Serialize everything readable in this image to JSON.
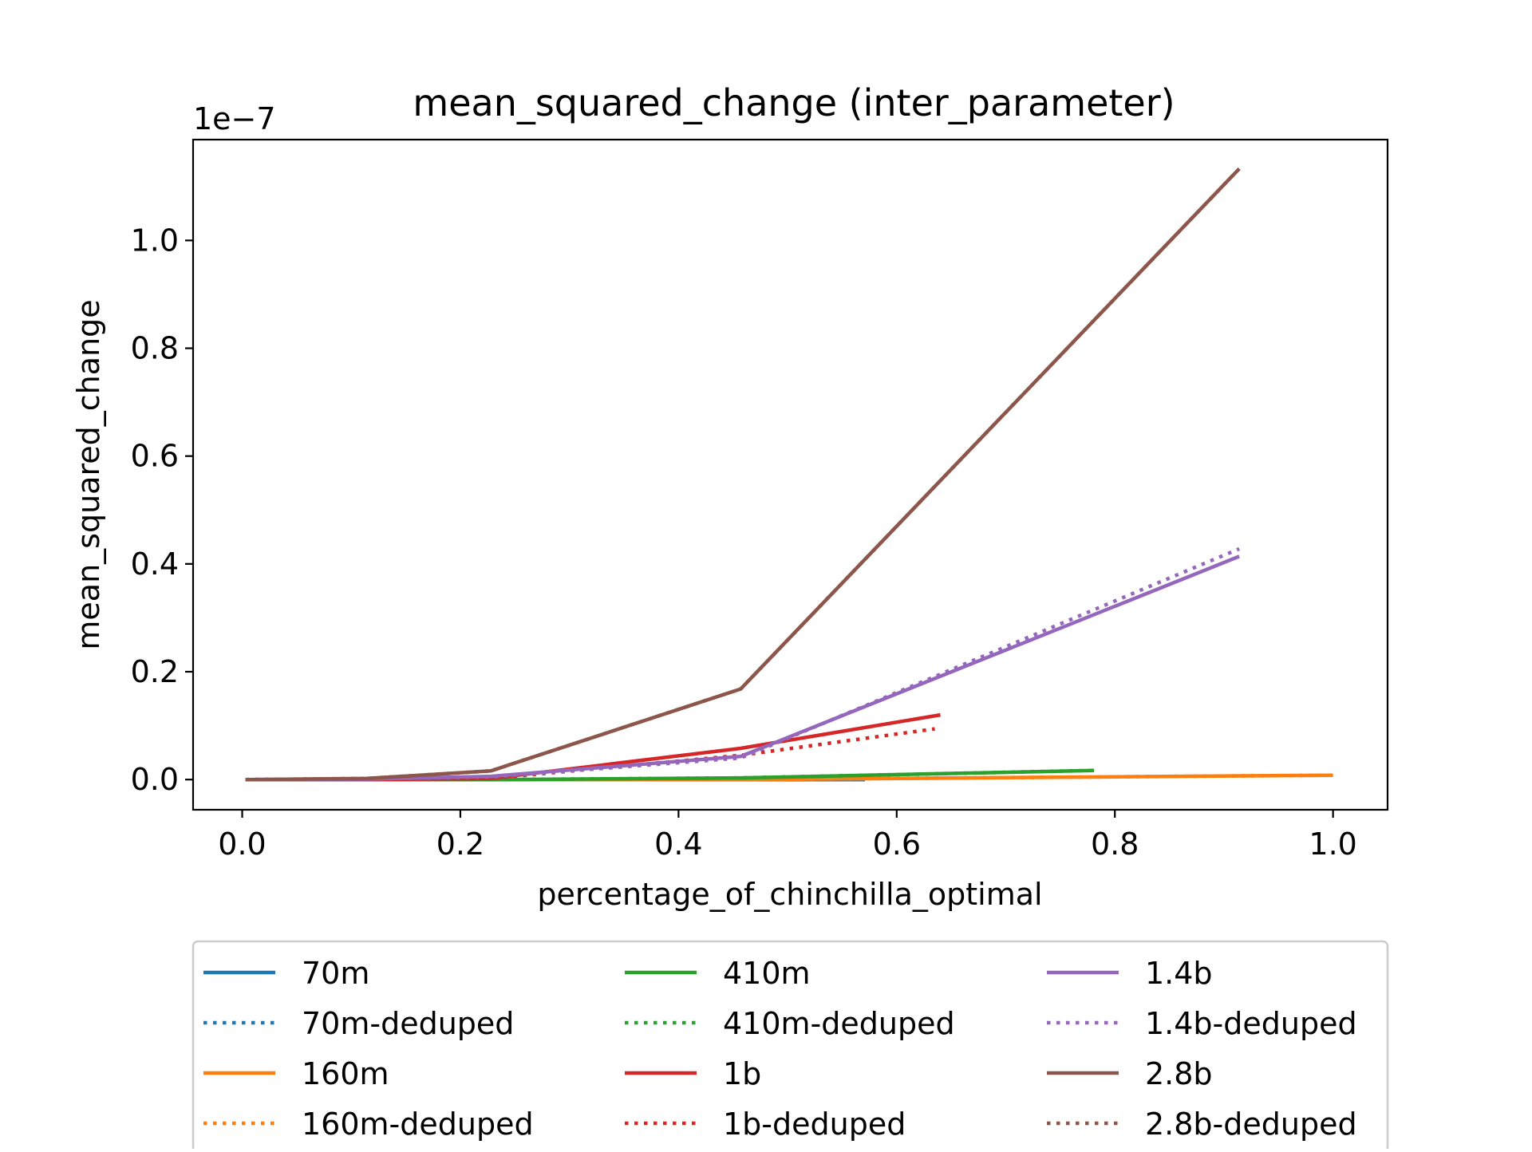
{
  "chart_data": {
    "type": "line",
    "title": "mean_squared_change (inter_parameter)",
    "xlabel": "percentage_of_chinchilla_optimal",
    "ylabel": "mean_squared_change",
    "y_offset_label": "1e−7",
    "xlim": [
      -0.045,
      1.05
    ],
    "ylim": [
      -0.056,
      1.187
    ],
    "y_scale": "1e-7",
    "xticks": [
      0.0,
      0.2,
      0.4,
      0.6,
      0.8,
      1.0
    ],
    "xtick_labels": [
      "0.0",
      "0.2",
      "0.4",
      "0.6",
      "0.8",
      "1.0"
    ],
    "yticks": [
      0.0,
      0.2,
      0.4,
      0.6,
      0.8,
      1.0
    ],
    "ytick_labels": [
      "0.0",
      "0.2",
      "0.4",
      "0.6",
      "0.8",
      "1.0"
    ],
    "grid": false,
    "legend_position": "below",
    "legend_columns": 3,
    "series": [
      {
        "name": "70m",
        "color": "#1f77b4",
        "style": "solid",
        "x": [
          0.003,
          0.114,
          0.228,
          0.457,
          0.571
        ],
        "y": [
          0.0,
          0.0,
          0.0,
          0.0,
          0.0
        ]
      },
      {
        "name": "70m-deduped",
        "color": "#1f77b4",
        "style": "dotted",
        "x": [
          0.003,
          0.114,
          0.228,
          0.457,
          0.571
        ],
        "y": [
          0.0,
          0.0,
          0.0,
          0.0,
          0.0
        ]
      },
      {
        "name": "160m",
        "color": "#ff7f0e",
        "style": "solid",
        "x": [
          0.003,
          0.114,
          0.228,
          0.457,
          1.0
        ],
        "y": [
          0.0,
          0.0,
          0.0,
          0.0,
          0.008
        ]
      },
      {
        "name": "160m-deduped",
        "color": "#ff7f0e",
        "style": "dotted",
        "x": [
          0.003,
          0.114,
          0.228,
          0.457,
          1.0
        ],
        "y": [
          0.0,
          0.0,
          0.0,
          0.0,
          0.008
        ]
      },
      {
        "name": "410m",
        "color": "#2ca02c",
        "style": "solid",
        "x": [
          0.003,
          0.114,
          0.228,
          0.457,
          0.781
        ],
        "y": [
          0.0,
          0.0,
          0.0,
          0.003,
          0.017
        ]
      },
      {
        "name": "410m-deduped",
        "color": "#2ca02c",
        "style": "dotted",
        "x": [
          0.003,
          0.114,
          0.228,
          0.457,
          0.781
        ],
        "y": [
          0.0,
          0.0,
          0.0,
          0.003,
          0.017
        ]
      },
      {
        "name": "1b",
        "color": "#d62728",
        "style": "solid",
        "x": [
          0.003,
          0.114,
          0.228,
          0.457,
          0.64
        ],
        "y": [
          0.0,
          0.0,
          0.002,
          0.058,
          0.12
        ]
      },
      {
        "name": "1b-deduped",
        "color": "#d62728",
        "style": "dotted",
        "x": [
          0.003,
          0.114,
          0.228,
          0.457,
          0.635
        ],
        "y": [
          0.0,
          0.0,
          0.002,
          0.045,
          0.094
        ]
      },
      {
        "name": "1.4b",
        "color": "#9467bd",
        "style": "solid",
        "x": [
          0.003,
          0.114,
          0.228,
          0.457,
          0.914
        ],
        "y": [
          0.0,
          0.001,
          0.006,
          0.043,
          0.414
        ]
      },
      {
        "name": "1.4b-deduped",
        "color": "#9467bd",
        "style": "dotted",
        "x": [
          0.003,
          0.114,
          0.228,
          0.457,
          0.914
        ],
        "y": [
          0.0,
          0.001,
          0.005,
          0.04,
          0.428
        ]
      },
      {
        "name": "2.8b",
        "color": "#8c564b",
        "style": "solid",
        "x": [
          0.003,
          0.114,
          0.228,
          0.457,
          0.914
        ],
        "y": [
          0.0,
          0.002,
          0.016,
          0.168,
          1.133
        ]
      },
      {
        "name": "2.8b-deduped",
        "color": "#8c564b",
        "style": "dotted",
        "x": [
          0.003,
          0.114,
          0.228,
          0.457,
          0.914
        ],
        "y": [
          0.0,
          0.002,
          0.016,
          0.168,
          1.133
        ]
      }
    ]
  }
}
